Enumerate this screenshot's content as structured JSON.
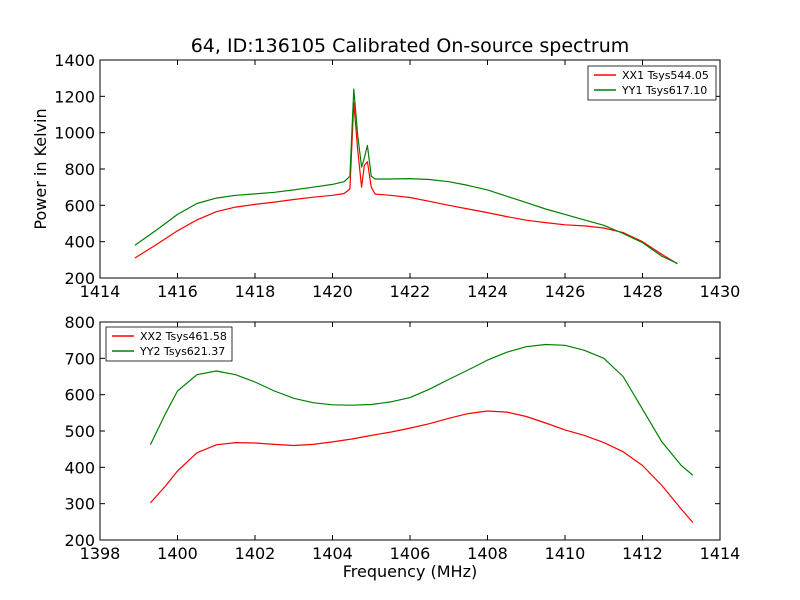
{
  "chart_data": [
    {
      "type": "line",
      "title": "64, ID:136105 Calibrated On-source spectrum",
      "xlabel": "",
      "ylabel": "Power in Kelvin",
      "xlim": [
        1414,
        1430
      ],
      "ylim": [
        200,
        1400
      ],
      "xticks": [
        "1414",
        "1416",
        "1418",
        "1420",
        "1422",
        "1424",
        "1426",
        "1428",
        "1430"
      ],
      "yticks": [
        "200",
        "400",
        "600",
        "800",
        "1000",
        "1200",
        "1400"
      ],
      "legend_position": "top-right",
      "grid": false,
      "series": [
        {
          "name": "XX1 Tsys544.05",
          "color": "#ff0000",
          "x": [
            1414.9,
            1415.5,
            1416.0,
            1416.5,
            1417.0,
            1417.5,
            1418.0,
            1418.5,
            1419.0,
            1419.5,
            1420.0,
            1420.3,
            1420.45,
            1420.55,
            1420.65,
            1420.75,
            1420.82,
            1420.9,
            1421.0,
            1421.1,
            1421.5,
            1422.0,
            1422.5,
            1423.0,
            1423.5,
            1424.0,
            1424.5,
            1425.0,
            1425.5,
            1426.0,
            1426.5,
            1427.0,
            1427.5,
            1428.0,
            1428.5,
            1428.9
          ],
          "y": [
            310,
            390,
            460,
            520,
            565,
            590,
            605,
            618,
            632,
            645,
            655,
            665,
            690,
            1165,
            905,
            700,
            820,
            840,
            700,
            662,
            655,
            643,
            622,
            600,
            580,
            560,
            538,
            518,
            505,
            493,
            487,
            475,
            450,
            400,
            330,
            278
          ]
        },
        {
          "name": "YY1 Tsys617.10",
          "color": "#008000",
          "x": [
            1414.9,
            1415.5,
            1416.0,
            1416.5,
            1417.0,
            1417.5,
            1418.0,
            1418.5,
            1419.0,
            1419.5,
            1420.0,
            1420.3,
            1420.45,
            1420.55,
            1420.65,
            1420.75,
            1420.82,
            1420.9,
            1421.0,
            1421.1,
            1421.5,
            1422.0,
            1422.5,
            1423.0,
            1423.5,
            1424.0,
            1424.5,
            1425.0,
            1425.5,
            1426.0,
            1426.5,
            1427.0,
            1427.5,
            1428.0,
            1428.5,
            1428.9
          ],
          "y": [
            380,
            470,
            550,
            610,
            640,
            655,
            663,
            672,
            685,
            700,
            715,
            730,
            760,
            1240,
            985,
            810,
            860,
            930,
            760,
            745,
            745,
            747,
            742,
            730,
            710,
            685,
            650,
            615,
            580,
            550,
            520,
            490,
            445,
            395,
            320,
            280
          ]
        }
      ]
    },
    {
      "type": "line",
      "title": "",
      "xlabel": "Frequency (MHz)",
      "ylabel": "",
      "xlim": [
        1398,
        1414
      ],
      "ylim": [
        200,
        800
      ],
      "xticks": [
        "1398",
        "1400",
        "1402",
        "1404",
        "1406",
        "1408",
        "1410",
        "1412",
        "1414"
      ],
      "yticks": [
        "200",
        "300",
        "400",
        "500",
        "600",
        "700",
        "800"
      ],
      "legend_position": "top-left",
      "grid": false,
      "series": [
        {
          "name": "XX2 Tsys461.58",
          "color": "#ff0000",
          "x": [
            1399.3,
            1399.7,
            1400.0,
            1400.5,
            1401.0,
            1401.5,
            1402.0,
            1402.5,
            1403.0,
            1403.5,
            1404.0,
            1404.5,
            1405.0,
            1405.5,
            1406.0,
            1406.5,
            1407.0,
            1407.5,
            1408.0,
            1408.5,
            1409.0,
            1409.5,
            1410.0,
            1410.5,
            1411.0,
            1411.5,
            1412.0,
            1412.5,
            1413.0,
            1413.3
          ],
          "y": [
            302,
            350,
            390,
            440,
            462,
            468,
            467,
            463,
            460,
            463,
            470,
            478,
            488,
            497,
            508,
            520,
            535,
            548,
            555,
            552,
            540,
            522,
            503,
            488,
            468,
            443,
            405,
            350,
            285,
            248
          ]
        },
        {
          "name": "YY2 Tsys621.37",
          "color": "#008000",
          "x": [
            1399.3,
            1399.7,
            1400.0,
            1400.5,
            1401.0,
            1401.5,
            1402.0,
            1402.5,
            1403.0,
            1403.5,
            1404.0,
            1404.5,
            1405.0,
            1405.5,
            1406.0,
            1406.5,
            1407.0,
            1407.5,
            1408.0,
            1408.5,
            1409.0,
            1409.5,
            1410.0,
            1410.5,
            1411.0,
            1411.5,
            1412.0,
            1412.5,
            1413.0,
            1413.3
          ],
          "y": [
            462,
            550,
            610,
            655,
            665,
            655,
            635,
            610,
            590,
            578,
            572,
            571,
            573,
            580,
            592,
            615,
            642,
            668,
            695,
            717,
            732,
            738,
            736,
            722,
            700,
            650,
            560,
            470,
            405,
            378
          ]
        }
      ]
    }
  ]
}
